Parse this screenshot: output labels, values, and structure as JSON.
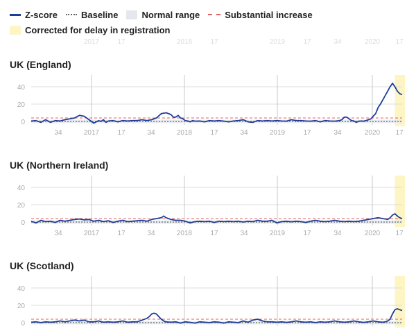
{
  "legend": {
    "zscore": "Z-score",
    "baseline": "Baseline",
    "normal": "Normal range",
    "substantial": "Substantial increase",
    "delay": "Corrected for delay in registration"
  },
  "colors": {
    "zscore": "#1f3c96",
    "baseline": "#666666",
    "normal_range": "#e4e8ee",
    "substantial": "#e06060",
    "delay": "#fdf5c4",
    "grid": "#dddddd",
    "year_line": "#c8c8c8",
    "tick_text": "#aaaaaa"
  },
  "x_tick_labels": [
    "34",
    "2017",
    "17",
    "34",
    "2018",
    "17",
    "34",
    "2019",
    "17",
    "34",
    "2020",
    "17"
  ],
  "faded_top_ticks": [
    "2017",
    "17",
    "2018",
    "17",
    "2019",
    "17",
    "34",
    "2020",
    "17"
  ],
  "chart_data": [
    {
      "type": "line",
      "title": "UK (England)",
      "x_unit": "ISO week, 2016 week 26 to 2020 week 18",
      "ylim": [
        -4,
        44
      ],
      "yticks": [
        0,
        20,
        40
      ],
      "baseline": 0,
      "substantial_increase": 4,
      "normal_range": [
        -2,
        2
      ],
      "series": [
        {
          "x": [
            0,
            4,
            8,
            12,
            16,
            20,
            24,
            28,
            32,
            36,
            40,
            44,
            48,
            52,
            56,
            58,
            60,
            62,
            64,
            68,
            72,
            76,
            80,
            84,
            88,
            92,
            96,
            100,
            104,
            108,
            112,
            116,
            118,
            120,
            122,
            124,
            126,
            128,
            130,
            132,
            134,
            136,
            140,
            144,
            148,
            152,
            156,
            160,
            164,
            168,
            172,
            176,
            180,
            184,
            188,
            192,
            196,
            200,
            204,
            208,
            212,
            216,
            220,
            224,
            228,
            232,
            236,
            240,
            244,
            248,
            252,
            256,
            258,
            260,
            262,
            264,
            266,
            268,
            270,
            272,
            274,
            276,
            278,
            280,
            282,
            284,
            286,
            288,
            290,
            292,
            294,
            296,
            298,
            300,
            302,
            304,
            306,
            308
          ],
          "values": [
            0.5,
            1,
            -1,
            2,
            -1,
            1,
            0.5,
            2,
            3,
            4,
            7,
            6,
            2,
            -2,
            1,
            0,
            2,
            -1,
            0.5,
            1,
            -0.5,
            1,
            0.5,
            1,
            1,
            2,
            1,
            2,
            4,
            9,
            10,
            8,
            5,
            5,
            7,
            4,
            3,
            1,
            0.5,
            -0.5,
            1,
            0.3,
            0.5,
            -0.5,
            1,
            0.5,
            1,
            0.3,
            -0.5,
            0.5,
            1,
            2,
            -0.5,
            -1,
            1,
            0.5,
            1,
            0.5,
            1,
            0.5,
            0.3,
            2,
            1,
            1,
            0.5,
            0.3,
            1,
            -0.5,
            1,
            0.5,
            0.3,
            1,
            2,
            5,
            5,
            3,
            1,
            0.5,
            -1,
            0.3,
            0.5,
            0.3,
            1,
            2,
            3,
            6,
            9,
            16,
            20,
            25,
            30,
            35,
            40,
            44,
            40,
            35,
            32,
            31
          ]
        }
      ]
    },
    {
      "type": "line",
      "title": "UK (Northern Ireland)",
      "x_unit": "ISO week, 2016 week 26 to 2020 week 18",
      "ylim": [
        -4,
        44
      ],
      "yticks": [
        0,
        20,
        40
      ],
      "baseline": 0,
      "substantial_increase": 4,
      "normal_range": [
        -2,
        2
      ],
      "series": [
        {
          "x": [
            0,
            4,
            8,
            12,
            16,
            20,
            24,
            28,
            32,
            36,
            40,
            44,
            48,
            52,
            56,
            60,
            64,
            68,
            72,
            76,
            80,
            84,
            88,
            92,
            96,
            100,
            104,
            108,
            110,
            112,
            114,
            116,
            120,
            124,
            128,
            132,
            136,
            140,
            144,
            148,
            152,
            156,
            160,
            164,
            168,
            172,
            176,
            180,
            184,
            188,
            192,
            196,
            200,
            204,
            208,
            212,
            216,
            220,
            224,
            228,
            232,
            236,
            240,
            244,
            248,
            252,
            256,
            260,
            264,
            268,
            272,
            276,
            280,
            284,
            288,
            292,
            296,
            298,
            300,
            302,
            304,
            306,
            308
          ],
          "values": [
            1,
            -1,
            2,
            0.5,
            1,
            -0.5,
            2,
            1,
            2,
            3,
            3.5,
            2.5,
            3,
            1,
            2,
            0.5,
            1.5,
            -0.5,
            1,
            2,
            0.5,
            1,
            1.5,
            2,
            1,
            3,
            4,
            5,
            7,
            5,
            4,
            3,
            2,
            2,
            1,
            -1,
            0.5,
            1,
            0.5,
            1,
            -0.5,
            1,
            0.5,
            1,
            0.5,
            1,
            0,
            1,
            0.5,
            2,
            1,
            1,
            2,
            -1,
            0.5,
            1,
            0.3,
            1,
            0.5,
            -0.5,
            1,
            2,
            1,
            0.5,
            1,
            2,
            1,
            0.5,
            1,
            0.5,
            1,
            2,
            3,
            4,
            5,
            4,
            3,
            5,
            8,
            9.5,
            7,
            5,
            4
          ]
        }
      ]
    },
    {
      "type": "line",
      "title": "UK (Scotland)",
      "x_unit": "ISO week, 2016 week 26 to 2020 week 18",
      "ylim": [
        -4,
        44
      ],
      "yticks": [
        0,
        20,
        40
      ],
      "baseline": 0,
      "substantial_increase": 4,
      "normal_range": [
        -2,
        2
      ],
      "series": [
        {
          "x": [
            0,
            4,
            8,
            12,
            16,
            20,
            24,
            28,
            32,
            36,
            40,
            44,
            48,
            52,
            56,
            60,
            64,
            68,
            72,
            76,
            80,
            84,
            88,
            92,
            96,
            98,
            100,
            102,
            104,
            106,
            108,
            110,
            112,
            116,
            120,
            124,
            128,
            132,
            136,
            140,
            144,
            148,
            152,
            156,
            160,
            164,
            168,
            172,
            176,
            180,
            184,
            188,
            192,
            196,
            200,
            204,
            208,
            212,
            216,
            220,
            224,
            228,
            232,
            236,
            240,
            244,
            248,
            252,
            256,
            260,
            264,
            268,
            272,
            276,
            280,
            284,
            288,
            292,
            294,
            296,
            298,
            300,
            302,
            304,
            306,
            308
          ],
          "values": [
            0.5,
            1,
            0,
            1,
            0.5,
            1,
            2,
            1,
            2,
            3,
            2,
            3,
            1,
            1,
            2,
            0.5,
            1,
            0.5,
            1,
            2,
            0.5,
            1,
            1,
            3,
            5,
            7,
            10,
            11,
            10,
            7,
            4,
            2,
            1,
            0.5,
            1,
            -0.5,
            1,
            0.3,
            -0.5,
            1,
            0.5,
            0,
            1,
            0.5,
            -0.5,
            1,
            0.5,
            0,
            2,
            0.5,
            3,
            4,
            2,
            1,
            1,
            0.5,
            1,
            0.3,
            1,
            2,
            1,
            0.5,
            1,
            0,
            1,
            0.5,
            1,
            2,
            1,
            0.5,
            1,
            2,
            1,
            0.3,
            1,
            2,
            1,
            0.5,
            1,
            2,
            4,
            10,
            15,
            16,
            15,
            14
          ]
        }
      ]
    }
  ]
}
